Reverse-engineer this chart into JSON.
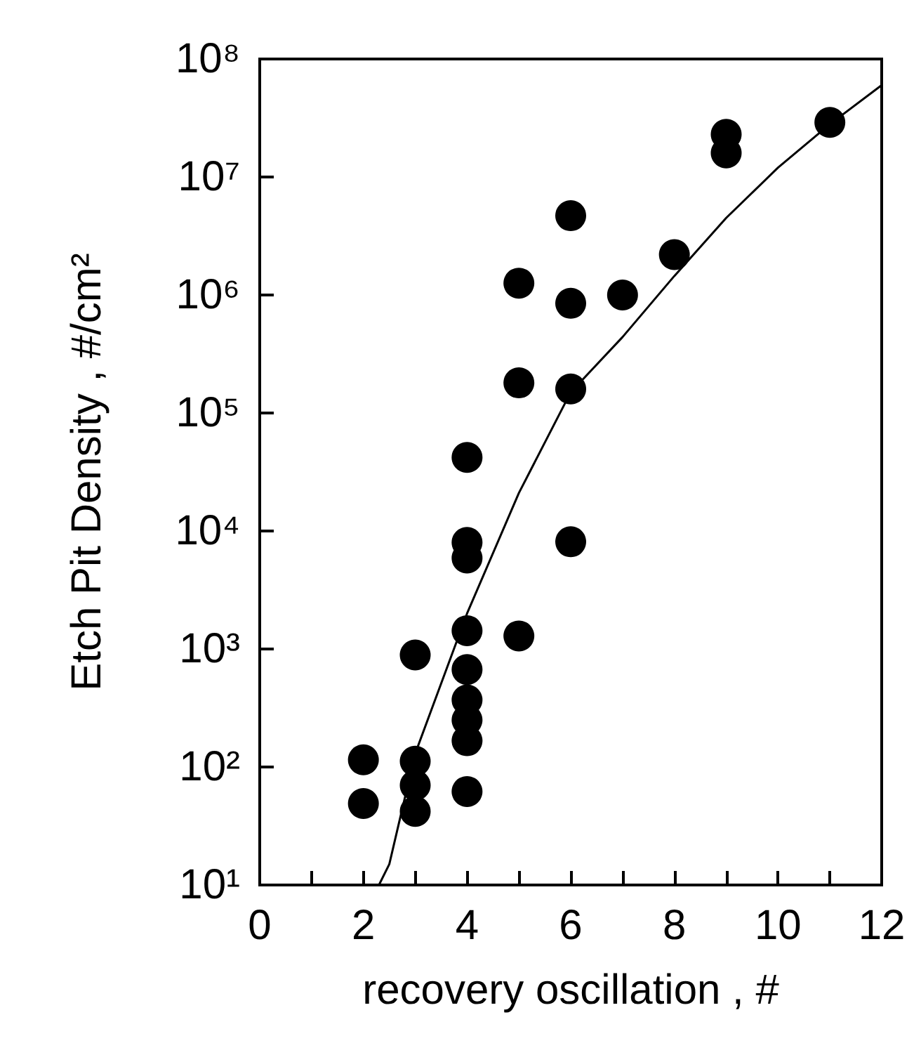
{
  "chart_data": {
    "type": "scatter",
    "xlabel": "recovery oscillation , #",
    "ylabel": "Etch Pit Density , #/cm²",
    "log": "y",
    "marker": "circle",
    "grid": false,
    "xlim": [
      0,
      12
    ],
    "xticks": [
      0,
      {
        "value": 1,
        "label": null
      },
      2,
      {
        "value": 3,
        "label": null
      },
      4,
      {
        "value": 5,
        "label": null
      },
      6,
      {
        "value": 7,
        "label": null
      },
      8,
      {
        "value": 9,
        "label": null
      },
      10,
      {
        "value": 11,
        "label": null
      },
      12
    ],
    "ylim": [
      10,
      100000000
    ],
    "yticks": [
      {
        "value": 10,
        "label": "10¹"
      },
      {
        "value": 100,
        "label": "10²"
      },
      {
        "value": 1000,
        "label": "10³"
      },
      {
        "value": 10000,
        "label": "10⁴"
      },
      {
        "value": 100000,
        "label": "10⁵"
      },
      {
        "value": 1000000,
        "label": "10⁶"
      },
      {
        "value": 10000000,
        "label": "10⁷"
      },
      {
        "value": 100000000,
        "label": "10⁸"
      }
    ],
    "series": [
      {
        "color": "#000000",
        "x": [
          2,
          2,
          3,
          3,
          3,
          3,
          4,
          4,
          4,
          4,
          4,
          4,
          4,
          4,
          4,
          5,
          5,
          5,
          6,
          6,
          6,
          6,
          7,
          8,
          9,
          9,
          11
        ],
        "values": [
          115,
          49,
          890,
          112,
          70,
          42,
          42000,
          8000,
          5900,
          1430,
          670,
          370,
          250,
          167,
          62,
          1290,
          180000,
          1260000,
          8100,
          160000,
          850000,
          4700000,
          1000000,
          2200000,
          16000000,
          23000000,
          29000000
        ]
      },
      {
        "type": "line",
        "color": "#000000",
        "marker": "none",
        "line_style": "solid",
        "x": [
          2.3,
          2.5,
          3,
          4,
          5,
          6,
          7,
          8,
          9,
          10,
          11,
          12
        ],
        "values": [
          10,
          15,
          130,
          2000,
          21000,
          150000,
          440000,
          1450000,
          4500000,
          12000000,
          28000000,
          60000000
        ]
      }
    ]
  }
}
